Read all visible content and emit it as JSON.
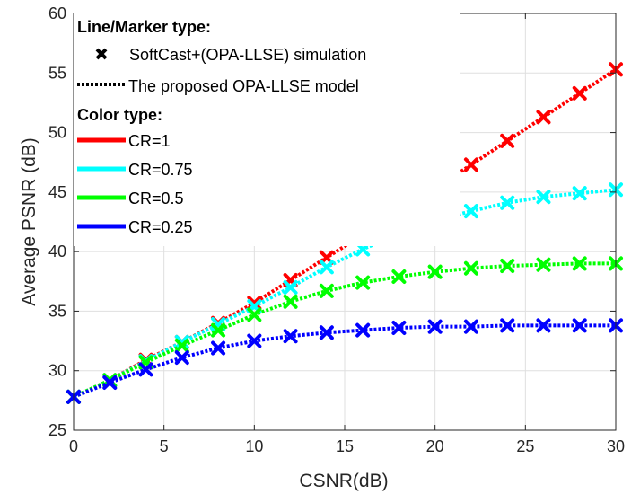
{
  "chart_data": {
    "type": "line",
    "xlabel": "CSNR(dB)",
    "ylabel": "Average PSNR (dB)",
    "xlim": [
      0,
      30
    ],
    "ylim": [
      25,
      60
    ],
    "xticks": [
      0,
      5,
      10,
      15,
      20,
      25,
      30
    ],
    "yticks": [
      25,
      30,
      35,
      40,
      45,
      50,
      55,
      60
    ],
    "grid": true,
    "legend_position": "top-left",
    "x": [
      0,
      2,
      4,
      6,
      8,
      10,
      12,
      14,
      16,
      18,
      20,
      22,
      24,
      26,
      28,
      30
    ],
    "series": [
      {
        "name": "CR=1",
        "color": "#ff0000",
        "values": [
          27.8,
          29.2,
          30.9,
          32.4,
          34.0,
          35.7,
          37.6,
          39.5,
          41.4,
          43.4,
          45.3,
          47.3,
          49.3,
          51.3,
          53.3,
          55.3
        ]
      },
      {
        "name": "CR=0.75",
        "color": "#00ffff",
        "values": [
          27.8,
          29.2,
          30.8,
          32.4,
          33.9,
          35.4,
          37.0,
          38.7,
          40.2,
          41.5,
          42.6,
          43.4,
          44.1,
          44.6,
          44.9,
          45.2
        ]
      },
      {
        "name": "CR=0.5",
        "color": "#00ff00",
        "values": [
          27.8,
          29.2,
          30.7,
          32.1,
          33.4,
          34.7,
          35.8,
          36.7,
          37.4,
          37.9,
          38.3,
          38.6,
          38.8,
          38.9,
          39.0,
          39.0
        ]
      },
      {
        "name": "CR=0.25",
        "color": "#0000ff",
        "values": [
          27.8,
          29.0,
          30.1,
          31.1,
          31.9,
          32.5,
          32.9,
          33.2,
          33.4,
          33.6,
          33.7,
          33.7,
          33.8,
          33.8,
          33.8,
          33.8
        ]
      }
    ],
    "legend": {
      "line_marker_heading": "Line/Marker type:",
      "simulation_label": "SoftCast+(OPA-LLSE) simulation",
      "model_label": "The proposed OPA-LLSE model",
      "color_heading": "Color type:",
      "marker_color": "#000000"
    }
  }
}
